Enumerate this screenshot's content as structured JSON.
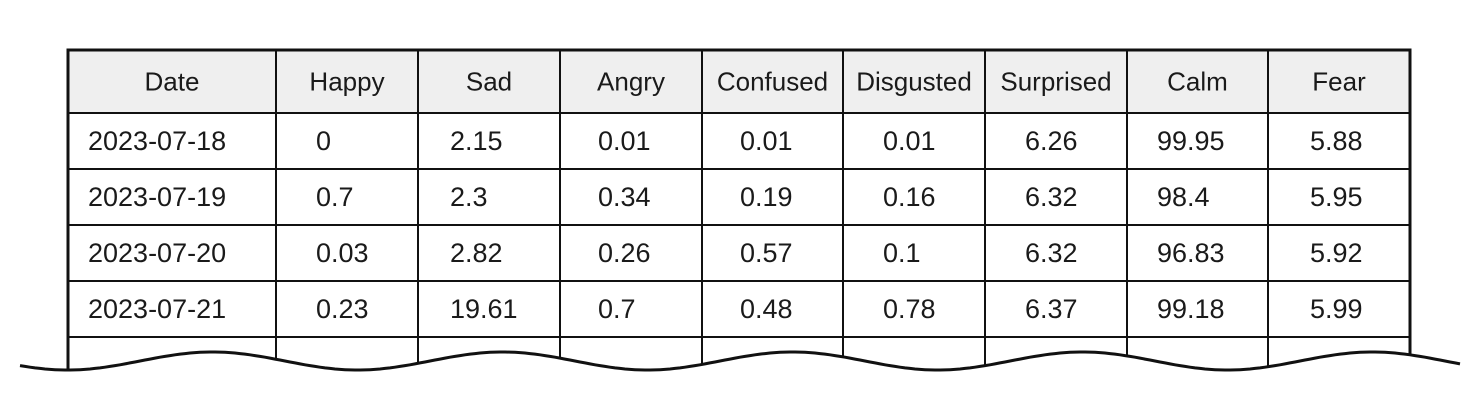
{
  "table": {
    "header": [
      "Date",
      "Happy",
      "Sad",
      "Angry",
      "Confused",
      "Disgusted",
      "Surprised",
      "Calm",
      "Fear"
    ],
    "rows": [
      [
        "2023-07-18",
        0,
        2.15,
        0.01,
        0.01,
        0.01,
        6.26,
        99.95,
        5.88
      ],
      [
        "2023-07-19",
        0.7,
        2.3,
        0.34,
        0.19,
        0.16,
        6.32,
        98.4,
        5.95
      ],
      [
        "2023-07-20",
        0.03,
        2.82,
        0.26,
        0.57,
        0.1,
        6.32,
        96.83,
        5.92
      ],
      [
        "2023-07-21",
        0.23,
        19.61,
        0.7,
        0.48,
        0.78,
        6.37,
        99.18,
        5.99
      ]
    ]
  }
}
